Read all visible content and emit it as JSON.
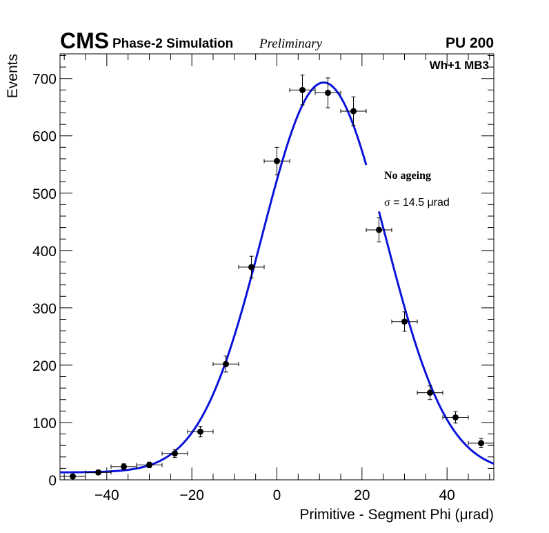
{
  "header": {
    "experiment": "CMS",
    "simulation": "Phase-2 Simulation",
    "status": "Preliminary",
    "pileup": "PU 200",
    "chamber": "Wh+1 MB3"
  },
  "annotations": {
    "condition": "No ageing",
    "sigma_symbol": "σ",
    "sigma_text": " = 14.5  μrad"
  },
  "chart_data": {
    "type": "scatter",
    "xlabel": "Primitive - Segment Phi (μrad)",
    "ylabel": "Events",
    "xlim": [
      -51,
      51
    ],
    "ylim": [
      0,
      743
    ],
    "xticks": [
      -40,
      -20,
      0,
      20,
      40
    ],
    "xtick_labels": [
      "−40",
      "−20",
      "0",
      "20",
      "40"
    ],
    "yticks": [
      0,
      100,
      200,
      300,
      400,
      500,
      600,
      700
    ],
    "ytick_labels": [
      "0",
      "100",
      "200",
      "300",
      "400",
      "500",
      "600",
      "700"
    ],
    "grid": false,
    "legend": "none",
    "series": [
      {
        "kind": "points",
        "x_halfwidth": 3,
        "points": [
          {
            "x": -48,
            "y": 6,
            "err": 3
          },
          {
            "x": -42,
            "y": 13,
            "err": 4
          },
          {
            "x": -36,
            "y": 23,
            "err": 5
          },
          {
            "x": -30,
            "y": 26,
            "err": 5
          },
          {
            "x": -24,
            "y": 46,
            "err": 7
          },
          {
            "x": -18,
            "y": 84,
            "err": 9
          },
          {
            "x": -12,
            "y": 202,
            "err": 14
          },
          {
            "x": -6,
            "y": 371,
            "err": 19
          },
          {
            "x": 0,
            "y": 556,
            "err": 24
          },
          {
            "x": 6,
            "y": 680,
            "err": 26
          },
          {
            "x": 12,
            "y": 675,
            "err": 26
          },
          {
            "x": 18,
            "y": 643,
            "err": 25
          },
          {
            "x": 24,
            "y": 436,
            "err": 21
          },
          {
            "x": 30,
            "y": 276,
            "err": 17
          },
          {
            "x": 36,
            "y": 152,
            "err": 12
          },
          {
            "x": 42,
            "y": 109,
            "err": 10
          },
          {
            "x": 48,
            "y": 64,
            "err": 8
          }
        ]
      },
      {
        "kind": "fit",
        "model": "gaussian_plus_constant",
        "amplitude": 680,
        "mean": 11,
        "sigma": 14.5,
        "constant": 13,
        "ranges": [
          [
            -51,
            21
          ],
          [
            24,
            51
          ]
        ]
      }
    ],
    "colors": {
      "fit": "#0a14d8",
      "points": "#000000",
      "axis": "#000000"
    }
  }
}
